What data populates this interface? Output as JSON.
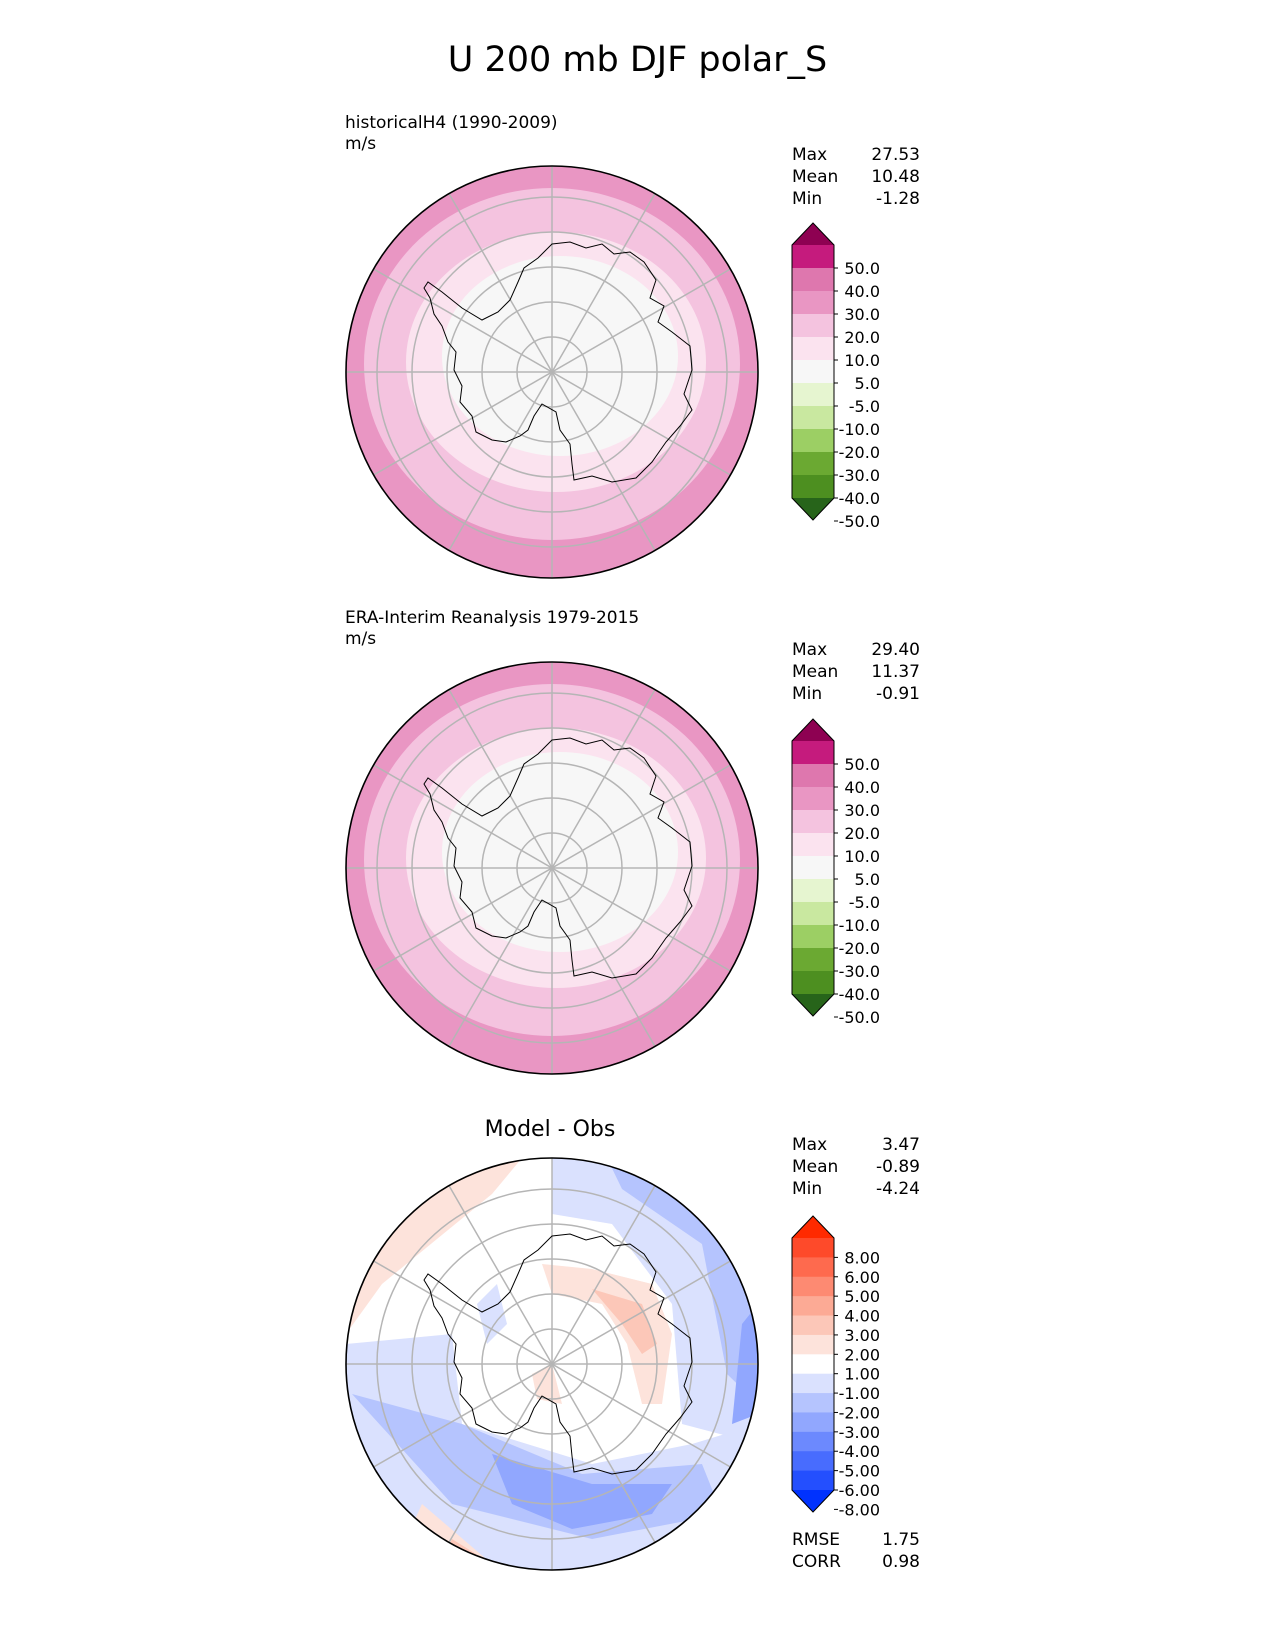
{
  "title": "U 200 mb DJF polar_S",
  "chart_data": [
    {
      "type": "heatmap",
      "projection": "south-polar-stereographic",
      "label": "historicalH4 (1990-2009)",
      "units": "m/s",
      "stats": [
        {
          "name": "Max",
          "value": "27.53"
        },
        {
          "name": "Mean",
          "value": "10.48"
        },
        {
          "name": "Min",
          "value": "-1.28"
        }
      ],
      "colorbar": {
        "levels": [
          "50.0",
          "40.0",
          "30.0",
          "20.0",
          "10.0",
          "5.0",
          "-5.0",
          "-10.0",
          "-20.0",
          "-30.0",
          "-40.0",
          "-50.0"
        ],
        "colors": [
          "#8e0152",
          "#c51b7d",
          "#de77ae",
          "#e996c3",
          "#f4c3df",
          "#fbe3ef",
          "#f7f7f7",
          "#e6f5d0",
          "#c9e8a0",
          "#9ccf64",
          "#6ba932",
          "#4d8f20",
          "#27641a"
        ]
      },
      "zones_ring_colors": [
        "#f7f7f7",
        "#fbe3ef",
        "#f4c3df",
        "#e996c3"
      ]
    },
    {
      "type": "heatmap",
      "projection": "south-polar-stereographic",
      "label": "ERA-Interim Reanalysis 1979-2015",
      "units": "m/s",
      "stats": [
        {
          "name": "Max",
          "value": "29.40"
        },
        {
          "name": "Mean",
          "value": "11.37"
        },
        {
          "name": "Min",
          "value": "-0.91"
        }
      ],
      "colorbar": {
        "levels": [
          "50.0",
          "40.0",
          "30.0",
          "20.0",
          "10.0",
          "5.0",
          "-5.0",
          "-10.0",
          "-20.0",
          "-30.0",
          "-40.0",
          "-50.0"
        ],
        "colors": [
          "#8e0152",
          "#c51b7d",
          "#de77ae",
          "#e996c3",
          "#f4c3df",
          "#fbe3ef",
          "#f7f7f7",
          "#e6f5d0",
          "#c9e8a0",
          "#9ccf64",
          "#6ba932",
          "#4d8f20",
          "#27641a"
        ]
      },
      "zones_ring_colors": [
        "#f7f7f7",
        "#fbe3ef",
        "#f4c3df",
        "#e996c3"
      ]
    },
    {
      "type": "heatmap",
      "projection": "south-polar-stereographic",
      "title": "Model - Obs",
      "stats": [
        {
          "name": "Max",
          "value": "3.47"
        },
        {
          "name": "Mean",
          "value": "-0.89"
        },
        {
          "name": "Min",
          "value": "-4.24"
        }
      ],
      "metrics": [
        {
          "name": "RMSE",
          "value": "1.75"
        },
        {
          "name": "CORR",
          "value": "0.98"
        }
      ],
      "colorbar": {
        "levels": [
          "8.00",
          "6.00",
          "5.00",
          "4.00",
          "3.00",
          "2.00",
          "1.00",
          "-1.00",
          "-2.00",
          "-3.00",
          "-4.00",
          "-5.00",
          "-6.00",
          "-8.00"
        ],
        "colors": [
          "#ff2a00",
          "#fe4a2a",
          "#fe6a4e",
          "#fd8a72",
          "#fcaa95",
          "#fcc7b8",
          "#fde3db",
          "#ffffff",
          "#dae1fe",
          "#b5c4fe",
          "#91a7fe",
          "#6c89fe",
          "#486cfe",
          "#244ffe",
          "#0032fe"
        ]
      }
    }
  ]
}
